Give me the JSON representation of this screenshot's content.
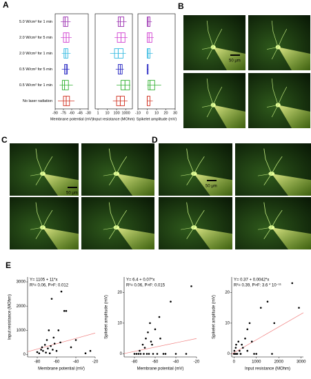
{
  "panel_labels": [
    "A",
    "B",
    "C",
    "D",
    "E"
  ],
  "scale_bar_labels": [
    "50 μm",
    "50 μm",
    "50 μm"
  ],
  "chart_data": [
    {
      "type": "box",
      "x_label": "Membrane potential (mV)",
      "categories": [
        "5.0 W/cm² for 1 min",
        "2.0 W/cm² for 5 min",
        "2.0 W/cm² for 1 min",
        "0.5 W/cm² for 5 min",
        "0.5 W/cm² for 1 min",
        "No laser radiation"
      ],
      "colors": [
        "#9b30b0",
        "#d040d0",
        "#30b8e0",
        "#2020c0",
        "#30b030",
        "#d03020"
      ],
      "xlim": [
        -90,
        -30
      ],
      "xticks": [
        -90,
        -75,
        -60,
        -45,
        -30
      ],
      "boxes": [
        [
          -80,
          -75,
          -72,
          -67,
          -62
        ],
        [
          -80,
          -75,
          -70,
          -65,
          -60
        ],
        [
          -78,
          -74,
          -71,
          -67,
          -62
        ],
        [
          -78,
          -73,
          -70,
          -68,
          -64
        ],
        [
          -82,
          -77,
          -73,
          -66,
          -58
        ],
        [
          -85,
          -75,
          -70,
          -64,
          -55
        ]
      ]
    },
    {
      "type": "box",
      "x_label": "Input resistance (MOhm)",
      "log_scale": true,
      "xlim": [
        0.5,
        5000
      ],
      "xticks": [
        1,
        10,
        100,
        1000
      ],
      "boxes": [
        [
          100,
          150,
          250,
          600,
          1200
        ],
        [
          60,
          120,
          300,
          800,
          1500
        ],
        [
          20,
          60,
          150,
          500,
          1000
        ],
        [
          80,
          150,
          250,
          400,
          600
        ],
        [
          100,
          300,
          800,
          2500,
          3000
        ],
        [
          40,
          100,
          250,
          700,
          1500
        ]
      ]
    },
    {
      "type": "box",
      "x_label": "Spikelet amplitude (mV)",
      "xlim": [
        -10,
        30
      ],
      "xticks": [
        -10,
        0,
        10,
        20,
        30
      ],
      "boxes": [
        [
          0,
          0,
          1,
          3,
          5
        ],
        [
          0,
          0,
          2,
          5,
          7
        ],
        [
          0,
          0,
          1,
          3,
          6
        ],
        [
          0,
          0,
          0,
          1,
          1
        ],
        [
          0,
          1,
          3,
          8,
          15
        ],
        [
          0,
          0,
          0,
          3,
          6
        ]
      ]
    },
    {
      "type": "scatter",
      "x_label": "Membrane potential (mV)",
      "y_label": "Input resistance (MOhm)",
      "annotations": [
        "Y= 1105 + 11*x",
        "R²= 0.06, P>F: 0.012"
      ],
      "fit": {
        "intercept": 1105,
        "slope": 11
      },
      "fit_color": "#f08080",
      "xlim": [
        -90,
        -20
      ],
      "xticks": [
        -80,
        -60,
        -40,
        -20
      ],
      "ylim": [
        -100,
        3200
      ],
      "yticks": [
        0,
        1000,
        2000,
        3000
      ],
      "x": [
        -80,
        -78,
        -76,
        -75,
        -74,
        -72,
        -71,
        -70,
        -69,
        -68,
        -67,
        -66,
        -65,
        -64,
        -63,
        -62,
        -60,
        -58,
        -56,
        -55,
        -52,
        -50,
        -45,
        -40,
        -30,
        -25
      ],
      "y": [
        100,
        50,
        200,
        300,
        150,
        400,
        80,
        600,
        250,
        1000,
        50,
        350,
        2300,
        200,
        700,
        450,
        150,
        1000,
        500,
        2600,
        1800,
        1800,
        300,
        600,
        50,
        150
      ]
    },
    {
      "type": "scatter",
      "x_label": "Membrane potential (mV)",
      "y_label": "Spikelet amplitude (mV)",
      "annotations": [
        "Y= 6.4 + 0.07*x",
        "R²= 0.06, P>F: 0.015"
      ],
      "fit": {
        "intercept": 6.4,
        "slope": 0.07
      },
      "fit_color": "#f08080",
      "xlim": [
        -90,
        -20
      ],
      "xticks": [
        -80,
        -60,
        -40,
        -20
      ],
      "ylim": [
        -1,
        25
      ],
      "yticks": [
        0,
        10,
        20
      ],
      "x": [
        -80,
        -78,
        -76,
        -75,
        -74,
        -72,
        -71,
        -70,
        -69,
        -68,
        -67,
        -66,
        -65,
        -64,
        -63,
        -62,
        -60,
        -58,
        -56,
        -55,
        -52,
        -50,
        -45,
        -40,
        -30,
        -25
      ],
      "y": [
        0,
        0,
        0,
        1,
        0,
        3,
        0,
        2,
        5,
        0,
        7,
        0,
        10,
        4,
        3,
        0,
        8,
        0,
        12,
        5,
        0,
        0,
        17,
        0,
        0,
        22
      ]
    },
    {
      "type": "scatter",
      "x_label": "Input resistance (MOhm)",
      "y_label": "Spikelet amplitude (mV)",
      "annotations": [
        "Y= 0.37 + 0.0042*x",
        "R²= 0.39, P>F: 3.6 * 10⁻¹¹"
      ],
      "fit": {
        "intercept": 0.37,
        "slope": 0.0042
      },
      "fit_color": "#f08080",
      "xlim": [
        -100,
        3100
      ],
      "xticks": [
        0,
        1000,
        2000,
        3000
      ],
      "ylim": [
        -1,
        25
      ],
      "yticks": [
        0,
        10,
        20
      ],
      "x": [
        0,
        20,
        50,
        80,
        100,
        150,
        200,
        250,
        300,
        350,
        400,
        500,
        600,
        700,
        800,
        1000,
        1200,
        1500,
        1800,
        2600,
        2900,
        100,
        300,
        600,
        900,
        1700
      ],
      "y": [
        0,
        1,
        0,
        2,
        3,
        0,
        4,
        1,
        0,
        3,
        2,
        5,
        1,
        10,
        4,
        0,
        15,
        17,
        10,
        23,
        15,
        0,
        0,
        8,
        0,
        0
      ]
    }
  ]
}
